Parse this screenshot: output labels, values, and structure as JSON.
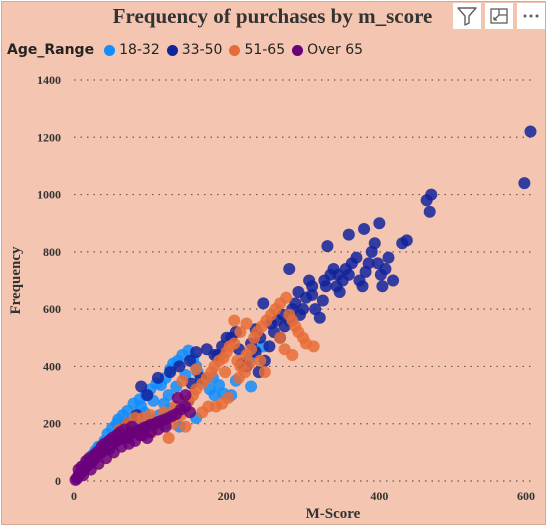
{
  "header": {
    "title": "Frequency of purchases by m_score",
    "tools": [
      {
        "name": "filter-icon"
      },
      {
        "name": "focus-mode-icon"
      },
      {
        "name": "more-options-icon"
      }
    ]
  },
  "legend": {
    "title": "Age_Range",
    "items": [
      {
        "label": "18-32",
        "color": "#118dff"
      },
      {
        "label": "33-50",
        "color": "#12239e"
      },
      {
        "label": "51-65",
        "color": "#e66c37"
      },
      {
        "label": "Over 65",
        "color": "#6b007b"
      }
    ]
  },
  "chart_data": {
    "type": "scatter",
    "title": "Frequency of purchases by m_score",
    "xlabel": "M-Score",
    "ylabel": "Frequency",
    "xlim": [
      0,
      600
    ],
    "ylim": [
      0,
      1400
    ],
    "xticks": [
      0,
      200,
      400,
      600
    ],
    "yticks": [
      0,
      200,
      400,
      600,
      800,
      1000,
      1200,
      1400
    ],
    "grid": "horizontal dotted",
    "legend_position": "top-left",
    "series": [
      {
        "name": "18-32",
        "color": "#118dff",
        "points": [
          [
            4,
            8
          ],
          [
            6,
            22
          ],
          [
            10,
            36
          ],
          [
            14,
            55
          ],
          [
            18,
            70
          ],
          [
            24,
            90
          ],
          [
            28,
            105
          ],
          [
            32,
            120
          ],
          [
            40,
            140
          ],
          [
            44,
            165
          ],
          [
            50,
            185
          ],
          [
            56,
            200
          ],
          [
            64,
            230
          ],
          [
            70,
            245
          ],
          [
            78,
            270
          ],
          [
            86,
            285
          ],
          [
            94,
            300
          ],
          [
            100,
            320
          ],
          [
            108,
            340
          ],
          [
            114,
            335
          ],
          [
            120,
            360
          ],
          [
            126,
            390
          ],
          [
            130,
            410
          ],
          [
            136,
            420
          ],
          [
            142,
            440
          ],
          [
            150,
            455
          ],
          [
            156,
            425
          ],
          [
            162,
            380
          ],
          [
            170,
            350
          ],
          [
            178,
            320
          ],
          [
            184,
            300
          ],
          [
            190,
            335
          ],
          [
            196,
            305
          ],
          [
            92,
            240
          ],
          [
            100,
            215
          ],
          [
            112,
            230
          ],
          [
            118,
            270
          ],
          [
            124,
            300
          ],
          [
            134,
            330
          ],
          [
            146,
            370
          ],
          [
            160,
            400
          ],
          [
            182,
            360
          ],
          [
            206,
            300
          ],
          [
            212,
            350
          ],
          [
            222,
            400
          ],
          [
            230,
            430
          ],
          [
            236,
            460
          ],
          [
            248,
            470
          ],
          [
            232,
            330
          ],
          [
            58,
            215
          ],
          [
            74,
            205
          ],
          [
            84,
            215
          ],
          [
            120,
            200
          ],
          [
            138,
            190
          ],
          [
            140,
            250
          ],
          [
            160,
            220
          ],
          [
            104,
            280
          ],
          [
            126,
            250
          ],
          [
            88,
            260
          ]
        ]
      },
      {
        "name": "33-50",
        "color": "#12239e",
        "points": [
          [
            20,
            60
          ],
          [
            46,
            110
          ],
          [
            62,
            180
          ],
          [
            70,
            200
          ],
          [
            82,
            230
          ],
          [
            88,
            330
          ],
          [
            96,
            300
          ],
          [
            110,
            360
          ],
          [
            126,
            380
          ],
          [
            138,
            400
          ],
          [
            152,
            420
          ],
          [
            160,
            450
          ],
          [
            174,
            460
          ],
          [
            188,
            440
          ],
          [
            194,
            470
          ],
          [
            206,
            500
          ],
          [
            212,
            520
          ],
          [
            220,
            410
          ],
          [
            226,
            400
          ],
          [
            232,
            480
          ],
          [
            238,
            450
          ],
          [
            244,
            500
          ],
          [
            250,
            420
          ],
          [
            256,
            470
          ],
          [
            262,
            520
          ],
          [
            266,
            560
          ],
          [
            270,
            500
          ],
          [
            276,
            540
          ],
          [
            282,
            560
          ],
          [
            286,
            600
          ],
          [
            290,
            620
          ],
          [
            294,
            660
          ],
          [
            300,
            600
          ],
          [
            304,
            640
          ],
          [
            308,
            700
          ],
          [
            312,
            650
          ],
          [
            316,
            600
          ],
          [
            322,
            570
          ],
          [
            326,
            630
          ],
          [
            330,
            680
          ],
          [
            336,
            720
          ],
          [
            340,
            740
          ],
          [
            344,
            680
          ],
          [
            348,
            660
          ],
          [
            352,
            700
          ],
          [
            356,
            740
          ],
          [
            360,
            720
          ],
          [
            364,
            760
          ],
          [
            370,
            780
          ],
          [
            374,
            700
          ],
          [
            378,
            680
          ],
          [
            382,
            730
          ],
          [
            386,
            760
          ],
          [
            390,
            800
          ],
          [
            394,
            830
          ],
          [
            398,
            760
          ],
          [
            402,
            720
          ],
          [
            404,
            680
          ],
          [
            408,
            740
          ],
          [
            412,
            780
          ],
          [
            418,
            700
          ],
          [
            430,
            830
          ],
          [
            436,
            840
          ],
          [
            332,
            820
          ],
          [
            360,
            860
          ],
          [
            380,
            880
          ],
          [
            400,
            900
          ],
          [
            282,
            740
          ],
          [
            312,
            680
          ],
          [
            328,
            700
          ],
          [
            346,
            720
          ],
          [
            462,
            980
          ],
          [
            468,
            1000
          ],
          [
            466,
            940
          ],
          [
            590,
            1040
          ],
          [
            598,
            1220
          ],
          [
            238,
            530
          ],
          [
            248,
            620
          ],
          [
            258,
            550
          ],
          [
            274,
            580
          ],
          [
            296,
            580
          ],
          [
            150,
            280
          ],
          [
            166,
            360
          ],
          [
            200,
            500
          ],
          [
            184,
            440
          ],
          [
            154,
            340
          ],
          [
            216,
            460
          ],
          [
            242,
            380
          ]
        ]
      },
      {
        "name": "51-65",
        "color": "#e66c37",
        "points": [
          [
            60,
            180
          ],
          [
            70,
            200
          ],
          [
            80,
            220
          ],
          [
            90,
            220
          ],
          [
            100,
            230
          ],
          [
            110,
            200
          ],
          [
            120,
            210
          ],
          [
            130,
            200
          ],
          [
            140,
            230
          ],
          [
            150,
            280
          ],
          [
            156,
            300
          ],
          [
            160,
            320
          ],
          [
            168,
            340
          ],
          [
            174,
            360
          ],
          [
            180,
            380
          ],
          [
            184,
            400
          ],
          [
            190,
            420
          ],
          [
            196,
            430
          ],
          [
            200,
            450
          ],
          [
            204,
            470
          ],
          [
            210,
            480
          ],
          [
            214,
            420
          ],
          [
            218,
            400
          ],
          [
            224,
            380
          ],
          [
            226,
            440
          ],
          [
            232,
            460
          ],
          [
            236,
            500
          ],
          [
            240,
            520
          ],
          [
            246,
            540
          ],
          [
            252,
            560
          ],
          [
            258,
            580
          ],
          [
            264,
            600
          ],
          [
            270,
            620
          ],
          [
            278,
            640
          ],
          [
            282,
            580
          ],
          [
            286,
            560
          ],
          [
            290,
            540
          ],
          [
            294,
            520
          ],
          [
            300,
            500
          ],
          [
            304,
            480
          ],
          [
            314,
            470
          ],
          [
            218,
            520
          ],
          [
            226,
            550
          ],
          [
            286,
            440
          ],
          [
            270,
            500
          ],
          [
            168,
            240
          ],
          [
            176,
            260
          ],
          [
            186,
            260
          ],
          [
            194,
            270
          ],
          [
            202,
            290
          ],
          [
            142,
            350
          ],
          [
            160,
            390
          ],
          [
            132,
            260
          ],
          [
            118,
            240
          ],
          [
            244,
            420
          ],
          [
            250,
            380
          ],
          [
            216,
            360
          ],
          [
            198,
            380
          ],
          [
            230,
            410
          ],
          [
            276,
            460
          ],
          [
            210,
            560
          ],
          [
            88,
            180
          ],
          [
            102,
            170
          ],
          [
            124,
            150
          ],
          [
            146,
            190
          ]
        ]
      },
      {
        "name": "Over 65",
        "color": "#6b007b",
        "points": [
          [
            2,
            4
          ],
          [
            4,
            10
          ],
          [
            6,
            18
          ],
          [
            8,
            26
          ],
          [
            10,
            30
          ],
          [
            12,
            36
          ],
          [
            14,
            44
          ],
          [
            16,
            50
          ],
          [
            18,
            56
          ],
          [
            20,
            60
          ],
          [
            22,
            66
          ],
          [
            24,
            70
          ],
          [
            26,
            76
          ],
          [
            28,
            82
          ],
          [
            30,
            88
          ],
          [
            34,
            96
          ],
          [
            36,
            100
          ],
          [
            40,
            110
          ],
          [
            44,
            118
          ],
          [
            48,
            126
          ],
          [
            52,
            132
          ],
          [
            56,
            140
          ],
          [
            60,
            146
          ],
          [
            64,
            150
          ],
          [
            68,
            156
          ],
          [
            72,
            162
          ],
          [
            76,
            168
          ],
          [
            80,
            172
          ],
          [
            84,
            176
          ],
          [
            88,
            180
          ],
          [
            92,
            186
          ],
          [
            96,
            190
          ],
          [
            100,
            196
          ],
          [
            106,
            200
          ],
          [
            110,
            206
          ],
          [
            116,
            212
          ],
          [
            122,
            218
          ],
          [
            128,
            226
          ],
          [
            134,
            234
          ],
          [
            140,
            250
          ],
          [
            146,
            260
          ],
          [
            152,
            240
          ],
          [
            136,
            290
          ],
          [
            146,
            300
          ],
          [
            10,
            50
          ],
          [
            20,
            80
          ],
          [
            30,
            100
          ],
          [
            40,
            130
          ],
          [
            50,
            150
          ],
          [
            60,
            170
          ],
          [
            70,
            150
          ],
          [
            80,
            140
          ],
          [
            90,
            160
          ],
          [
            100,
            170
          ],
          [
            110,
            180
          ],
          [
            120,
            190
          ],
          [
            6,
            40
          ],
          [
            16,
            70
          ],
          [
            26,
            90
          ],
          [
            36,
            120
          ],
          [
            46,
            140
          ],
          [
            56,
            160
          ],
          [
            66,
            180
          ],
          [
            76,
            190
          ],
          [
            86,
            160
          ],
          [
            96,
            150
          ],
          [
            12,
            20
          ],
          [
            22,
            40
          ],
          [
            32,
            60
          ],
          [
            42,
            80
          ],
          [
            52,
            100
          ],
          [
            62,
            120
          ],
          [
            72,
            130
          ]
        ]
      }
    ]
  }
}
